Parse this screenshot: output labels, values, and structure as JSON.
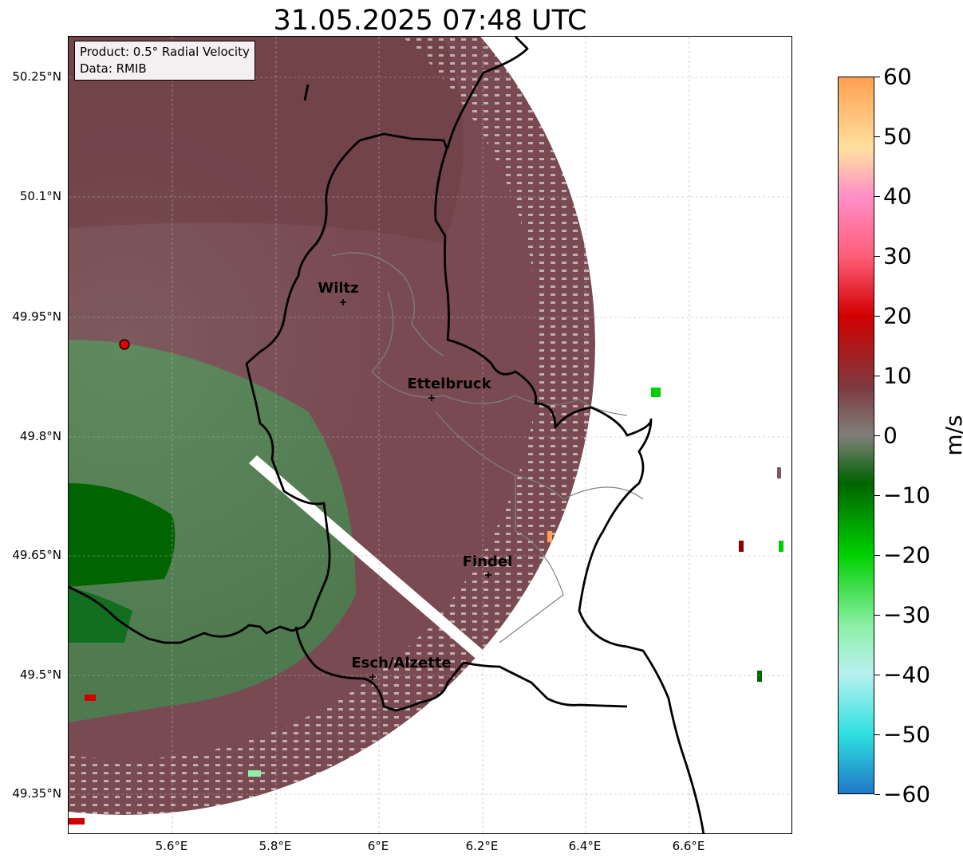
{
  "title": "31.05.2025 07:48 UTC",
  "info_box": {
    "product": "Product: 0.5° Radial Velocity",
    "source": "Data: RMIB"
  },
  "lat_labels": [
    "50.25°N",
    "50.1°N",
    "49.95°N",
    "49.8°N",
    "49.65°N",
    "49.5°N",
    "49.35°N"
  ],
  "lon_labels": [
    "5.6°E",
    "5.8°E",
    "6°E",
    "6.2°E",
    "6.4°E",
    "6.6°E"
  ],
  "cities": [
    {
      "name": "Wiltz"
    },
    {
      "name": "Ettelbruck"
    },
    {
      "name": "Findel"
    },
    {
      "name": "Esch/Alzette"
    }
  ],
  "colorbar": {
    "unit": "m/s",
    "ticks": [
      "60",
      "50",
      "40",
      "30",
      "20",
      "10",
      "0",
      "−10",
      "−20",
      "−30",
      "−40",
      "−50",
      "−60"
    ],
    "range": [
      -60,
      60
    ],
    "stops": [
      {
        "value": -60,
        "color": "#1f78c8"
      },
      {
        "value": -50,
        "color": "#2ee0e0"
      },
      {
        "value": -40,
        "color": "#b8f0f0"
      },
      {
        "value": -32,
        "color": "#8ef0a8"
      },
      {
        "value": -20,
        "color": "#00d000"
      },
      {
        "value": -8,
        "color": "#006400"
      },
      {
        "value": 0,
        "color": "#7f7f7a"
      },
      {
        "value": 8,
        "color": "#7d3a40"
      },
      {
        "value": 20,
        "color": "#d00000"
      },
      {
        "value": 30,
        "color": "#ff5e78"
      },
      {
        "value": 40,
        "color": "#ff8ec8"
      },
      {
        "value": 48,
        "color": "#ffe0a0"
      },
      {
        "value": 60,
        "color": "#ffa050"
      }
    ]
  },
  "colors": {
    "outbound": "#7a4a52",
    "inbound": "#4f7a4f",
    "strong_inbound": "#006400",
    "strong_outbound": "#8b0000",
    "border": "#000000",
    "district": "#808080",
    "radar_site": "#e00000"
  }
}
